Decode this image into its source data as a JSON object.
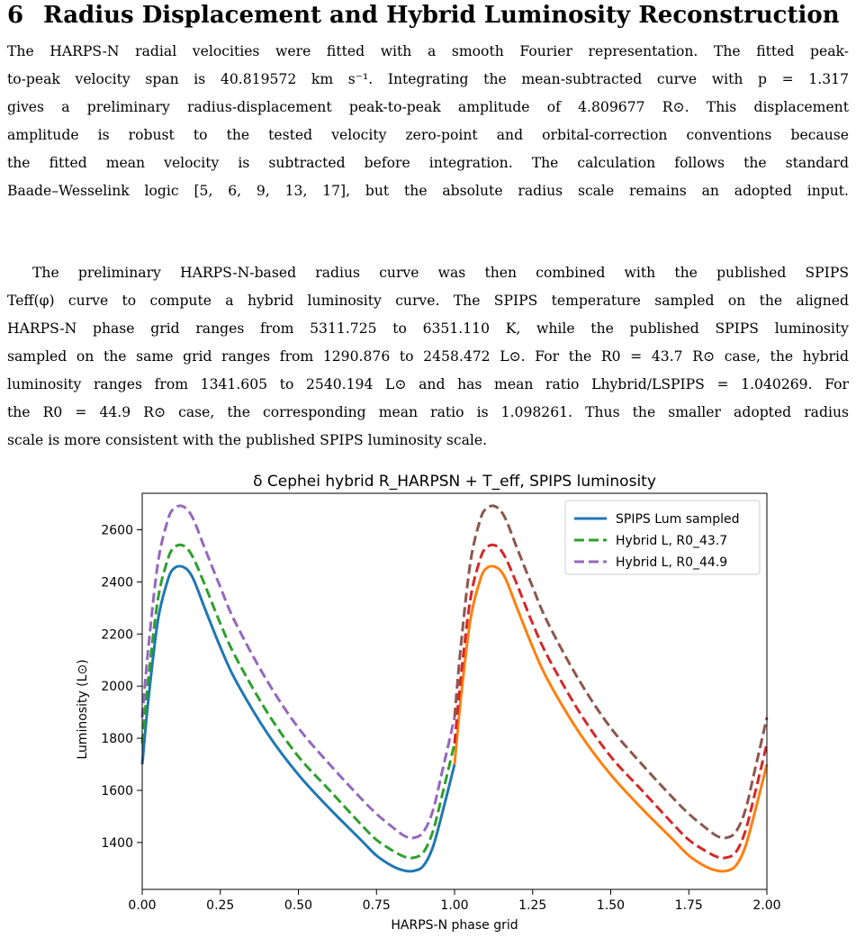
{
  "section": {
    "number": "6",
    "title": "Radius Displacement and Hybrid Luminosity Reconstruction"
  },
  "paragraph1": [
    "The HARPS-N radial velocities were fitted with a smooth Fourier representation. The fitted peak-",
    "to-peak velocity span is 40.819572 km s⁻¹. Integrating the mean-subtracted curve with p = 1.317",
    "gives a preliminary radius-displacement peak-to-peak amplitude of 4.809677 R⊙. This displacement",
    "amplitude is robust to the tested velocity zero-point and orbital-correction conventions because",
    "the fitted mean velocity is subtracted before integration. The calculation follows the standard",
    "Baade–Wesselink logic [5, 6, 9, 13, 17], but the absolute radius scale remains an adopted input."
  ],
  "paragraph2": [
    "The preliminary HARPS-N-based radius curve was then combined with the published SPIPS",
    "Teff(φ) curve to compute a hybrid luminosity curve. The SPIPS temperature sampled on the aligned",
    "HARPS-N phase grid ranges from 5311.725 to 6351.110 K, while the published SPIPS luminosity",
    "sampled on the same grid ranges from 1290.876 to 2458.472 L⊙. For the R0 = 43.7 R⊙ case, the hybrid",
    "luminosity ranges from 1341.605 to 2540.194 L⊙ and has mean ratio Lhybrid/LSPIPS = 1.040269. For",
    "the R0 = 44.9 R⊙ case, the corresponding mean ratio is 1.098261. Thus the smaller adopted radius",
    "scale is more consistent with the published SPIPS luminosity scale."
  ],
  "chart_data": {
    "type": "line",
    "title": "δ Cephei hybrid R_HARPSN + T_eff, SPIPS luminosity",
    "xlabel": "HARPS-N phase grid",
    "ylabel": "Luminosity (L⊙)",
    "xlim": [
      0.0,
      2.0
    ],
    "ylim": [
      1220,
      2740
    ],
    "xticks": [
      "0.00",
      "0.25",
      "0.50",
      "0.75",
      "1.00",
      "1.25",
      "1.50",
      "1.75",
      "2.00"
    ],
    "yticks": [
      "1400",
      "1600",
      "1800",
      "2000",
      "2200",
      "2400",
      "2600"
    ],
    "legend_position": "top-right",
    "legend": [
      {
        "label": "SPIPS Lum sampled",
        "color": "#1f77b4",
        "dash": "solid"
      },
      {
        "label": "Hybrid L, R0_43.7",
        "color": "#2ca02c",
        "dash": "dashed"
      },
      {
        "label": "Hybrid L, R0_44.9",
        "color": "#9467bd",
        "dash": "dashed"
      }
    ],
    "phase": [
      0.0,
      0.02,
      0.05,
      0.08,
      0.1,
      0.13,
      0.16,
      0.2,
      0.25,
      0.3,
      0.4,
      0.5,
      0.6,
      0.7,
      0.75,
      0.8,
      0.84,
      0.87,
      0.9,
      0.93,
      0.96,
      1.0
    ],
    "series": [
      {
        "key": "spips",
        "color": "#1f77b4",
        "color_repeat": "#ff7f0e",
        "dash": "solid",
        "values": [
          1700,
          1950,
          2250,
          2400,
          2450,
          2458,
          2420,
          2300,
          2150,
          2020,
          1820,
          1660,
          1530,
          1410,
          1350,
          1310,
          1292,
          1291,
          1310,
          1380,
          1510,
          1700
        ]
      },
      {
        "key": "r437",
        "color": "#2ca02c",
        "color_repeat": "#d62728",
        "dash": "dashed",
        "values": [
          1780,
          2030,
          2330,
          2480,
          2530,
          2540,
          2500,
          2390,
          2240,
          2110,
          1900,
          1730,
          1600,
          1470,
          1410,
          1370,
          1345,
          1342,
          1362,
          1440,
          1580,
          1780
        ]
      },
      {
        "key": "r449",
        "color": "#9467bd",
        "color_repeat": "#8c564b",
        "dash": "dashed",
        "values": [
          1880,
          2150,
          2470,
          2630,
          2680,
          2690,
          2650,
          2530,
          2380,
          2240,
          2020,
          1840,
          1700,
          1570,
          1510,
          1460,
          1425,
          1418,
          1440,
          1520,
          1670,
          1880
        ]
      }
    ]
  }
}
